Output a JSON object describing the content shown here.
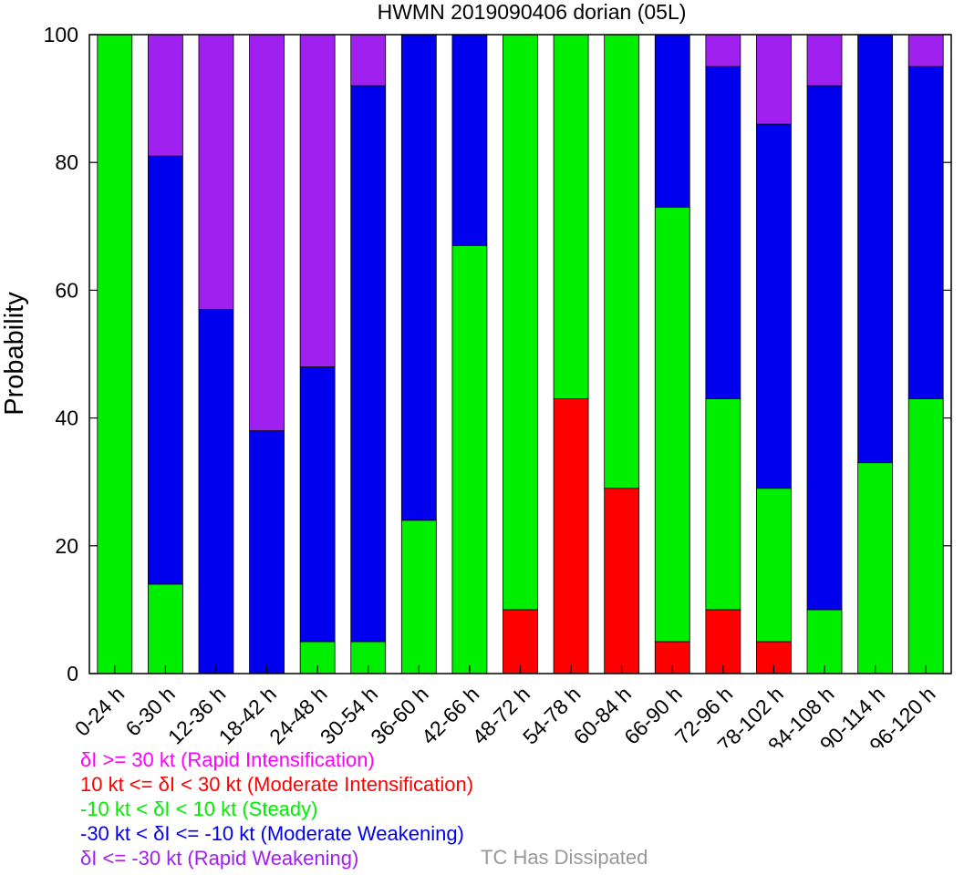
{
  "chart_data": {
    "type": "bar",
    "stacked": true,
    "title": "HWMN 2019090406 dorian (05L)",
    "ylabel": "Probability",
    "ylim": [
      0,
      100
    ],
    "yticks": [
      0,
      20,
      40,
      60,
      80,
      100
    ],
    "categories": [
      "0-24 h",
      "6-30 h",
      "12-36 h",
      "18-42 h",
      "24-48 h",
      "30-54 h",
      "36-60 h",
      "42-66 h",
      "48-72 h",
      "54-78 h",
      "60-84 h",
      "66-90 h",
      "72-96 h",
      "78-102 h",
      "84-108 h",
      "90-114 h",
      "96-120 h"
    ],
    "series": [
      {
        "key": "moderate_intensification",
        "color": "#ff0000",
        "values": [
          0,
          0,
          0,
          0,
          0,
          0,
          0,
          0,
          10,
          43,
          29,
          5,
          10,
          5,
          0,
          0,
          0
        ]
      },
      {
        "key": "steady",
        "color": "#00ee00",
        "values": [
          100,
          14,
          0,
          0,
          5,
          5,
          24,
          67,
          90,
          57,
          71,
          68,
          33,
          24,
          10,
          33,
          43
        ]
      },
      {
        "key": "moderate_weakening",
        "color": "#0000ee",
        "values": [
          0,
          67,
          57,
          38,
          43,
          87,
          76,
          33,
          0,
          0,
          0,
          27,
          52,
          57,
          82,
          67,
          52
        ]
      },
      {
        "key": "rapid_weakening",
        "color": "#a020f0",
        "values": [
          0,
          19,
          43,
          62,
          52,
          8,
          0,
          0,
          0,
          0,
          0,
          0,
          5,
          14,
          8,
          0,
          5
        ]
      }
    ]
  },
  "legend": {
    "rapid_intensification": {
      "text": "δI >= 30 kt (Rapid Intensification)",
      "color": "#ff00ff"
    },
    "moderate_intensification": {
      "text": "10 kt <= δI < 30 kt (Moderate Intensification)",
      "color": "#ff0000"
    },
    "steady": {
      "text": "-10 kt < δI < 10 kt (Steady)",
      "color": "#00ee00"
    },
    "moderate_weakening": {
      "text": "-30 kt < δI <= -10 kt (Moderate Weakening)",
      "color": "#0000ee"
    },
    "rapid_weakening": {
      "text": "δI <= -30 kt (Rapid Weakening)",
      "color": "#a020f0"
    },
    "dissipated": {
      "text": "TC Has Dissipated",
      "color": "#999999"
    }
  }
}
